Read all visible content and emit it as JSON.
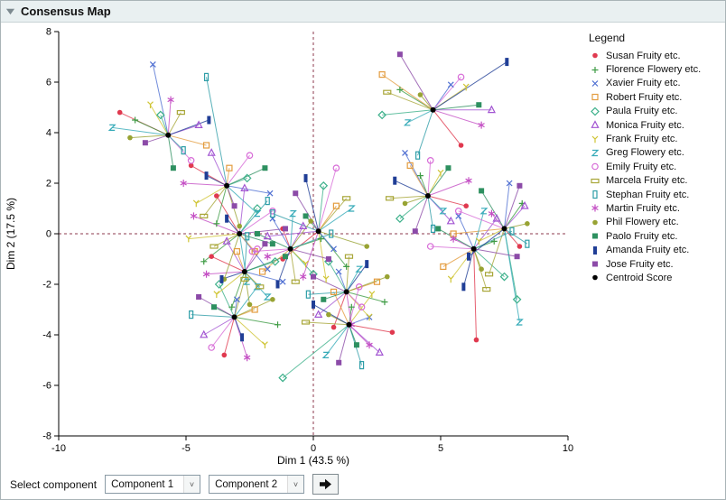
{
  "window": {
    "title": "Consensus Map"
  },
  "legend": {
    "title": "Legend"
  },
  "controls": {
    "label": "Select component",
    "select1": "Component 1",
    "select2": "Component 2"
  },
  "chart_data": {
    "type": "scatter",
    "title": "Consensus Map",
    "xlabel": "Dim 1  (43.5 %)",
    "ylabel": "Dim 2  (17.5 %)",
    "xlim": [
      -10,
      10
    ],
    "ylim": [
      -8,
      8
    ],
    "xticks": [
      -10,
      -5,
      0,
      5,
      10
    ],
    "yticks": [
      -8,
      -6,
      -4,
      -2,
      0,
      2,
      4,
      6,
      8
    ],
    "refline_color": "#8e3a4e",
    "axis_color": "#000000",
    "grid": false,
    "legend_position": "right",
    "centroid_legend": {
      "label": "Centroid Score",
      "color": "#000000",
      "marker": "filled-circle"
    },
    "centroids": [
      [
        -5.7,
        3.9
      ],
      [
        -3.4,
        1.9
      ],
      [
        -2.9,
        0.0
      ],
      [
        -2.7,
        -1.5
      ],
      [
        -3.1,
        -3.3
      ],
      [
        0.2,
        0.1
      ],
      [
        1.3,
        -2.3
      ],
      [
        1.4,
        -3.6
      ],
      [
        4.7,
        4.9
      ],
      [
        4.5,
        1.5
      ],
      [
        6.3,
        -0.6
      ],
      [
        7.5,
        0.2
      ],
      [
        -0.9,
        -0.6
      ]
    ],
    "series": [
      {
        "name": "Susan Fruity etc.",
        "color": "#e0394f",
        "marker": "filled-circle",
        "points": [
          [
            -7.6,
            4.8
          ],
          [
            -4.8,
            2.7
          ],
          [
            -3.8,
            1.5
          ],
          [
            -4.0,
            -0.9
          ],
          [
            -3.5,
            -4.8
          ],
          [
            -1.2,
            -1.0
          ],
          [
            0.8,
            -3.7
          ],
          [
            3.1,
            -3.9
          ],
          [
            5.8,
            3.5
          ],
          [
            6.0,
            1.1
          ],
          [
            6.4,
            -4.2
          ],
          [
            8.1,
            -0.5
          ],
          [
            -1.2,
            0.2
          ]
        ]
      },
      {
        "name": "Florence Flowery etc.",
        "color": "#3f9c45",
        "marker": "plus",
        "points": [
          [
            -7.0,
            4.5
          ],
          [
            -3.8,
            0.4
          ],
          [
            -4.3,
            -1.1
          ],
          [
            -3.2,
            -2.9
          ],
          [
            -1.4,
            -3.6
          ],
          [
            1.3,
            -1.3
          ],
          [
            2.8,
            -2.7
          ],
          [
            1.5,
            -2.9
          ],
          [
            3.4,
            5.7
          ],
          [
            4.2,
            2.3
          ],
          [
            7.1,
            -0.3
          ],
          [
            8.2,
            1.2
          ],
          [
            0.3,
            -0.2
          ]
        ]
      },
      {
        "name": "Xavier Fruity etc.",
        "color": "#4f6fd2",
        "marker": "x",
        "points": [
          [
            -6.3,
            6.7
          ],
          [
            -1.7,
            1.6
          ],
          [
            -1.8,
            -1.4
          ],
          [
            -1.2,
            -1.9
          ],
          [
            -3.0,
            -2.6
          ],
          [
            0.8,
            -0.6
          ],
          [
            1.0,
            -1.5
          ],
          [
            2.2,
            -3.3
          ],
          [
            5.4,
            5.9
          ],
          [
            3.6,
            3.2
          ],
          [
            5.7,
            0.7
          ],
          [
            7.7,
            2.0
          ],
          [
            -1.6,
            0.6
          ]
        ]
      },
      {
        "name": "Robert Fruity etc.",
        "color": "#e39c3f",
        "marker": "open-square",
        "points": [
          [
            -4.2,
            3.5
          ],
          [
            -3.3,
            2.6
          ],
          [
            -2.3,
            -0.7
          ],
          [
            -3.0,
            -0.7
          ],
          [
            -2.3,
            -3.0
          ],
          [
            0.9,
            1.1
          ],
          [
            2.5,
            -1.9
          ],
          [
            0.8,
            -2.3
          ],
          [
            2.7,
            6.3
          ],
          [
            3.8,
            2.7
          ],
          [
            5.1,
            -1.3
          ],
          [
            5.5,
            0.0
          ],
          [
            -2.0,
            -1.5
          ]
        ]
      },
      {
        "name": "Paula Fruity etc.",
        "color": "#3cb08a",
        "marker": "open-diamond",
        "points": [
          [
            -6.0,
            4.7
          ],
          [
            -2.6,
            2.2
          ],
          [
            -2.2,
            1.0
          ],
          [
            -1.5,
            -1.1
          ],
          [
            -3.7,
            -2.0
          ],
          [
            0.4,
            1.9
          ],
          [
            0.6,
            -1.1
          ],
          [
            -1.2,
            -5.7
          ],
          [
            2.7,
            4.7
          ],
          [
            3.4,
            0.6
          ],
          [
            7.5,
            -1.7
          ],
          [
            8.0,
            -2.6
          ],
          [
            0.0,
            -1.6
          ]
        ]
      },
      {
        "name": "Monica Fruity etc.",
        "color": "#a254d2",
        "marker": "open-triangle",
        "points": [
          [
            -4.5,
            4.3
          ],
          [
            -4.0,
            3.2
          ],
          [
            -2.7,
            1.8
          ],
          [
            -3.4,
            -0.3
          ],
          [
            -4.3,
            -4.0
          ],
          [
            -1.8,
            -0.1
          ],
          [
            0.2,
            -3.2
          ],
          [
            2.6,
            -4.7
          ],
          [
            7.0,
            4.9
          ],
          [
            5.4,
            0.5
          ],
          [
            7.2,
            0.6
          ],
          [
            8.3,
            1.1
          ],
          [
            -0.4,
            0.3
          ]
        ]
      },
      {
        "name": "Frank Fruity etc.",
        "color": "#cfc433",
        "marker": "y",
        "points": [
          [
            -6.4,
            5.1
          ],
          [
            -4.6,
            1.2
          ],
          [
            -4.9,
            -0.2
          ],
          [
            -3.8,
            -2.4
          ],
          [
            -1.9,
            -4.4
          ],
          [
            0.5,
            -1.8
          ],
          [
            2.2,
            -3.3
          ],
          [
            2.3,
            -2.4
          ],
          [
            6.0,
            5.8
          ],
          [
            5.0,
            2.4
          ],
          [
            5.4,
            -1.8
          ],
          [
            6.5,
            -0.3
          ],
          [
            -0.3,
            -1.2
          ]
        ]
      },
      {
        "name": "Greg Flowery etc.",
        "color": "#35aab8",
        "marker": "z",
        "points": [
          [
            -7.9,
            4.2
          ],
          [
            -2.2,
            0.8
          ],
          [
            -2.6,
            -1.9
          ],
          [
            -1.8,
            -2.5
          ],
          [
            -2.2,
            -2.1
          ],
          [
            1.5,
            1.0
          ],
          [
            1.8,
            -1.4
          ],
          [
            0.5,
            -4.8
          ],
          [
            3.7,
            4.4
          ],
          [
            5.1,
            0.9
          ],
          [
            6.7,
            0.9
          ],
          [
            8.1,
            -3.5
          ],
          [
            -0.8,
            0.8
          ]
        ]
      },
      {
        "name": "Emily Fruity etc.",
        "color": "#d76bd7",
        "marker": "open-circle",
        "points": [
          [
            -4.8,
            2.9
          ],
          [
            -2.5,
            3.1
          ],
          [
            -1.6,
            0.9
          ],
          [
            -2.2,
            -0.6
          ],
          [
            -4.0,
            -4.5
          ],
          [
            0.9,
            2.6
          ],
          [
            1.9,
            -2.9
          ],
          [
            1.8,
            -2.1
          ],
          [
            5.8,
            6.2
          ],
          [
            4.6,
            2.9
          ],
          [
            4.6,
            -0.5
          ],
          [
            5.7,
            0.9
          ],
          [
            -2.4,
            -0.7
          ]
        ]
      },
      {
        "name": "Marcela Fruity etc.",
        "color": "#a8a638",
        "marker": "open-hrect",
        "points": [
          [
            -5.2,
            4.8
          ],
          [
            -4.3,
            0.7
          ],
          [
            -3.9,
            -0.5
          ],
          [
            -2.1,
            -2.1
          ],
          [
            -2.7,
            -1.8
          ],
          [
            1.3,
            1.4
          ],
          [
            1.4,
            -0.9
          ],
          [
            -0.3,
            -3.5
          ],
          [
            2.9,
            5.6
          ],
          [
            3.0,
            1.4
          ],
          [
            6.8,
            -2.2
          ],
          [
            6.9,
            -1.6
          ],
          [
            -0.7,
            -1.9
          ]
        ]
      },
      {
        "name": "Stephan Fruity etc.",
        "color": "#2f9ea8",
        "marker": "open-vrect",
        "points": [
          [
            -5.1,
            3.3
          ],
          [
            -4.2,
            6.2
          ],
          [
            -1.8,
            1.3
          ],
          [
            -2.6,
            -0.1
          ],
          [
            -4.8,
            -3.2
          ],
          [
            -1.6,
            0.8
          ],
          [
            -0.2,
            -2.4
          ],
          [
            1.9,
            -5.2
          ],
          [
            4.1,
            3.1
          ],
          [
            4.7,
            0.2
          ],
          [
            7.8,
            0.1
          ],
          [
            8.4,
            -0.4
          ],
          [
            0.7,
            0.0
          ]
        ]
      },
      {
        "name": "Martin Fruity etc.",
        "color": "#c44fc4",
        "marker": "asterisk",
        "points": [
          [
            -5.6,
            5.3
          ],
          [
            -5.1,
            2.0
          ],
          [
            -4.7,
            0.7
          ],
          [
            -4.2,
            -1.6
          ],
          [
            -2.6,
            -4.9
          ],
          [
            -0.4,
            -1.7
          ],
          [
            1.5,
            -3.6
          ],
          [
            2.2,
            -4.4
          ],
          [
            6.6,
            4.3
          ],
          [
            6.1,
            2.1
          ],
          [
            5.5,
            -0.2
          ],
          [
            7.0,
            0.8
          ],
          [
            -1.8,
            -0.9
          ]
        ]
      },
      {
        "name": "Phil Flowery etc.",
        "color": "#98a333",
        "marker": "filled-circle",
        "points": [
          [
            -7.2,
            3.8
          ],
          [
            -2.9,
            0.3
          ],
          [
            -3.5,
            -1.8
          ],
          [
            -2.5,
            -2.8
          ],
          [
            -1.6,
            -2.6
          ],
          [
            2.1,
            -0.5
          ],
          [
            2.9,
            -1.7
          ],
          [
            0.6,
            -3.2
          ],
          [
            4.2,
            5.5
          ],
          [
            3.6,
            1.2
          ],
          [
            6.6,
            -1.4
          ],
          [
            8.4,
            0.4
          ],
          [
            -0.1,
            0.5
          ]
        ]
      },
      {
        "name": "Paolo Fruity etc.",
        "color": "#2e9060",
        "marker": "filled-square",
        "points": [
          [
            -5.5,
            2.6
          ],
          [
            -1.9,
            2.6
          ],
          [
            -1.6,
            -0.4
          ],
          [
            -1.1,
            -0.9
          ],
          [
            -3.9,
            -2.9
          ],
          [
            -0.3,
            0.7
          ],
          [
            0.4,
            -2.6
          ],
          [
            1.7,
            -4.4
          ],
          [
            6.5,
            5.1
          ],
          [
            5.3,
            2.6
          ],
          [
            4.9,
            0.2
          ],
          [
            6.6,
            1.7
          ],
          [
            -2.2,
            0.0
          ]
        ]
      },
      {
        "name": "Amanda Fruity etc.",
        "color": "#203e96",
        "marker": "filled-vrect",
        "points": [
          [
            -4.1,
            4.5
          ],
          [
            -4.2,
            2.3
          ],
          [
            -3.4,
            0.6
          ],
          [
            -3.6,
            -1.8
          ],
          [
            -2.8,
            -4.1
          ],
          [
            -0.3,
            2.2
          ],
          [
            2.1,
            -1.2
          ],
          [
            0.0,
            -2.8
          ],
          [
            7.6,
            6.8
          ],
          [
            3.2,
            2.1
          ],
          [
            5.9,
            -2.1
          ],
          [
            6.1,
            -0.9
          ],
          [
            -1.4,
            -2.0
          ]
        ]
      },
      {
        "name": "Jose Fruity etc.",
        "color": "#8c4ba8",
        "marker": "filled-square",
        "points": [
          [
            -6.6,
            3.6
          ],
          [
            -3.1,
            1.1
          ],
          [
            -1.1,
            0.2
          ],
          [
            -1.9,
            -0.4
          ],
          [
            -4.5,
            -2.5
          ],
          [
            -0.7,
            1.6
          ],
          [
            0.0,
            -1.7
          ],
          [
            1.0,
            -5.1
          ],
          [
            3.4,
            7.1
          ],
          [
            4.0,
            0.1
          ],
          [
            8.0,
            -0.9
          ],
          [
            8.1,
            1.9
          ],
          [
            0.6,
            -1.0
          ]
        ]
      }
    ]
  }
}
